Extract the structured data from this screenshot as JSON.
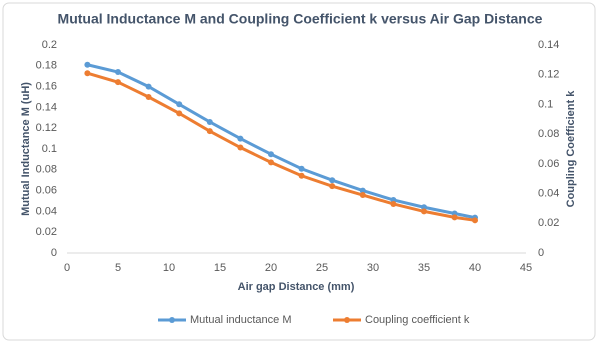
{
  "chart_data": {
    "type": "line",
    "title": "Mutual Inductance M and Coupling Coefficient k versus Air Gap Distance",
    "x_label": "Air gap Distance (mm)",
    "y_label": "Mutual Inductance M (uH)",
    "y2_label": "Coupling Coefficient k",
    "x": [
      2,
      5,
      8,
      11,
      14,
      17,
      20,
      23,
      26,
      29,
      32,
      35,
      38,
      40
    ],
    "series": [
      {
        "name": "Mutual inductance M",
        "color": "#5b9bd5",
        "values": [
          0.181,
          0.174,
          0.16,
          0.143,
          0.126,
          0.11,
          0.095,
          0.081,
          0.07,
          0.06,
          0.051,
          0.044,
          0.038,
          0.034
        ]
      },
      {
        "name": "Coupling coefficient k",
        "color": "#ed7d31",
        "axis": "y2",
        "values": [
          0.121,
          0.115,
          0.105,
          0.094,
          0.082,
          0.071,
          0.061,
          0.052,
          0.045,
          0.039,
          0.033,
          0.028,
          0.024,
          0.022
        ]
      }
    ],
    "xlim": [
      0,
      45
    ],
    "xticks": [
      0,
      5,
      10,
      15,
      20,
      25,
      30,
      35,
      40,
      45
    ],
    "ylim": [
      0,
      0.2
    ],
    "yticks": [
      0,
      0.02,
      0.04,
      0.06,
      0.08,
      0.1,
      0.12,
      0.14,
      0.16,
      0.18,
      0.2
    ],
    "y2lim": [
      0,
      0.14
    ],
    "y2ticks": [
      0,
      0.02,
      0.04,
      0.06,
      0.08,
      0.1,
      0.12,
      0.14
    ],
    "grid": false,
    "legend": "bottom"
  }
}
